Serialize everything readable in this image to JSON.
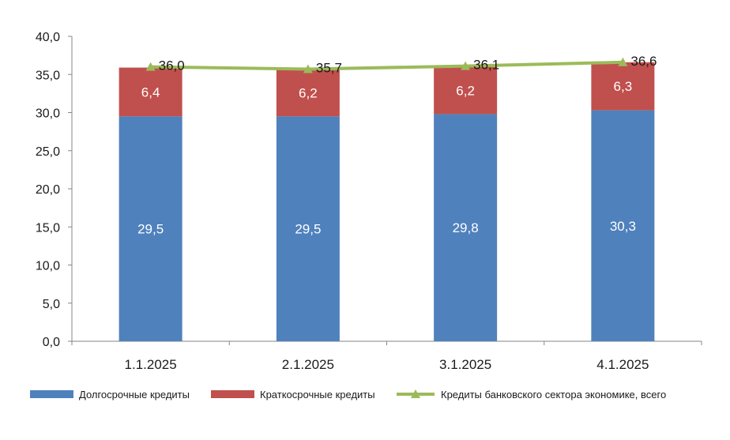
{
  "chart_data": {
    "type": "bar",
    "stacked": true,
    "categories": [
      "1.1.2025",
      "2.1.2025",
      "3.1.2025",
      "4.1.2025"
    ],
    "series": [
      {
        "name": "Долгосрочные кредиты",
        "type": "bar",
        "color": "#4f81bd",
        "values": [
          29.5,
          29.5,
          29.8,
          30.3
        ],
        "labels": [
          "29,5",
          "29,5",
          "29,8",
          "30,3"
        ]
      },
      {
        "name": "Краткосрочные кредиты",
        "type": "bar",
        "color": "#c0504d",
        "values": [
          6.4,
          6.2,
          6.2,
          6.3
        ],
        "labels": [
          "6,4",
          "6,2",
          "6,2",
          "6,3"
        ]
      },
      {
        "name": "Кредиты банковского сектора экономике, всего",
        "type": "line",
        "color": "#9bbb59",
        "values": [
          36.0,
          35.7,
          36.1,
          36.6
        ],
        "labels": [
          "36,0",
          "35,7",
          "36,1",
          "36,6"
        ]
      }
    ],
    "y_ticks": [
      "0,0",
      "5,0",
      "10,0",
      "15,0",
      "20,0",
      "25,0",
      "30,0",
      "35,0",
      "40,0"
    ],
    "ylim": [
      0,
      40
    ],
    "grid": false,
    "legend_position": "bottom"
  }
}
